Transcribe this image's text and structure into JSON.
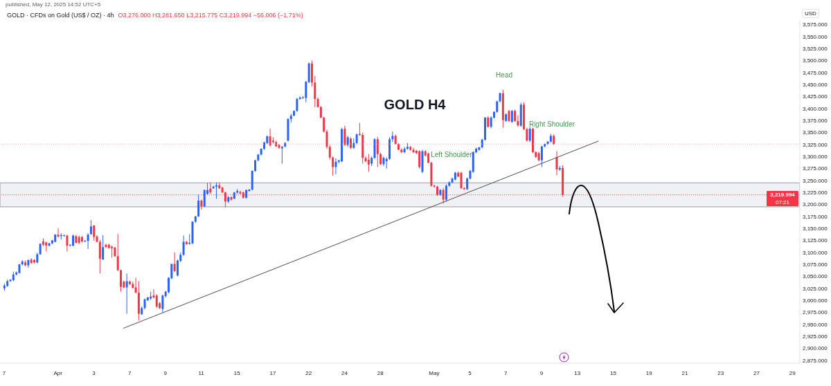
{
  "chart_data": {
    "type": "candlestick",
    "title": "GOLD H4",
    "subtitle": "GOLD · CFDs on Gold (US$ / OZ) · 4h",
    "ylabel": "USD",
    "annotations": [
      "published, May 12, 2025 14:52 UTC+5",
      "O3,276.000 H3,281.650 L3,215.775 C3,219.994 −56.006 (−1.71%)",
      "07:21",
      "Head",
      "Left Shoulder",
      "Right Shoulder"
    ],
    "categories": [
      "7",
      null,
      null,
      null,
      null,
      null,
      null,
      null,
      null,
      null,
      null,
      null,
      null,
      null,
      null,
      null,
      null,
      null,
      "Apr",
      null,
      null,
      null,
      null,
      null,
      null,
      null,
      null,
      null,
      null,
      null,
      "3",
      null,
      null,
      null,
      null,
      null,
      null,
      null,
      null,
      null,
      null,
      null,
      "7",
      null,
      null,
      null,
      null,
      null,
      null,
      null,
      null,
      null,
      null,
      null,
      "9",
      null,
      null,
      null,
      null,
      null,
      null,
      null,
      null,
      null,
      null,
      null,
      "11",
      null,
      null,
      null,
      null,
      null,
      null,
      null,
      null,
      null,
      null,
      null,
      "15",
      null,
      null,
      null,
      null,
      null,
      null,
      null,
      null,
      null,
      null,
      null,
      "17",
      null,
      null,
      null,
      null,
      null,
      null,
      null,
      null,
      null,
      null,
      null,
      "22",
      null,
      null,
      null,
      null,
      null,
      null,
      null,
      null,
      null,
      null,
      null,
      "24",
      null,
      null,
      null,
      null,
      null,
      null,
      null,
      null,
      null,
      null,
      null,
      "28",
      null,
      null,
      null,
      null,
      null,
      null,
      null,
      null,
      null,
      null,
      null,
      null,
      null,
      null,
      null,
      null,
      null,
      "May",
      null,
      null,
      null,
      null,
      null,
      null,
      null,
      null,
      null,
      null,
      null,
      "5",
      null,
      null,
      null,
      null,
      null,
      null,
      null,
      null,
      null,
      null,
      null,
      "7",
      null,
      null,
      null,
      null,
      null,
      null,
      null,
      null,
      null,
      null,
      null,
      "9",
      null,
      null,
      null,
      null,
      null,
      null,
      null,
      null,
      null,
      null,
      null,
      "13",
      null,
      null,
      null,
      null,
      null,
      null,
      null,
      null,
      null,
      null,
      null,
      "15",
      null,
      null,
      null,
      null,
      null,
      null,
      null,
      null,
      null,
      null,
      null,
      "19",
      null,
      null,
      null,
      null,
      null,
      null,
      null,
      null,
      null,
      null,
      null,
      "21",
      null,
      null,
      null,
      null,
      null,
      null,
      null,
      null,
      null,
      null,
      null,
      "23",
      null,
      null,
      null,
      null,
      null,
      null,
      null,
      null,
      null,
      null,
      null,
      "27",
      null,
      null,
      null,
      null,
      null,
      null,
      null,
      null,
      null,
      null,
      null,
      "29",
      null,
      null
    ],
    "ohlc": [
      [
        3025,
        3035,
        3020,
        3031
      ],
      [
        3030,
        3043,
        3028,
        3040
      ],
      [
        3040,
        3044,
        3039,
        3043
      ],
      [
        3042,
        3060,
        3040,
        3054
      ],
      [
        3054,
        3060,
        3052,
        3058
      ],
      [
        3057,
        3076,
        3056,
        3075
      ],
      [
        3075,
        3084,
        3073,
        3081
      ],
      [
        3079,
        3083,
        3071,
        3073
      ],
      [
        3073,
        3085,
        3068,
        3084
      ],
      [
        3085,
        3088,
        3076,
        3078
      ],
      [
        3084,
        3086,
        3077,
        3079
      ],
      [
        3079,
        3099,
        3077,
        3096
      ],
      [
        3096,
        3119,
        3095,
        3118
      ],
      [
        3123,
        3129,
        3113,
        3116
      ],
      [
        3121,
        3122,
        3102,
        3114
      ],
      [
        3114,
        3120,
        3112,
        3119
      ],
      [
        3119,
        3126,
        3117,
        3125
      ],
      [
        3122,
        3138,
        3121,
        3137
      ],
      [
        3137,
        3150,
        3131,
        3133
      ],
      [
        3134,
        3140,
        3127,
        3136
      ],
      [
        3135,
        3137,
        3133,
        3136
      ],
      [
        3135,
        3137,
        3102,
        3114
      ],
      [
        3115,
        3117,
        3112,
        3116
      ],
      [
        3114,
        3137,
        3113,
        3135
      ],
      [
        3134,
        3136,
        3119,
        3120
      ],
      [
        3132,
        3135,
        3117,
        3120
      ],
      [
        3132,
        3134,
        3121,
        3123
      ],
      [
        3123,
        3126,
        3121,
        3124
      ],
      [
        3124,
        3140,
        3107,
        3137
      ],
      [
        3138,
        3167,
        3137,
        3154
      ],
      [
        3156,
        3157,
        3124,
        3132
      ],
      [
        3133,
        3136,
        3121,
        3122
      ],
      [
        3122,
        3126,
        3056,
        3087
      ],
      [
        3085,
        3136,
        3085,
        3111
      ],
      [
        3116,
        3118,
        3110,
        3111
      ],
      [
        3116,
        3118,
        3108,
        3109
      ],
      [
        3112,
        3114,
        3089,
        3109
      ],
      [
        3110,
        3112,
        3091,
        3092
      ],
      [
        3092,
        3138,
        3061,
        3063
      ],
      [
        3063,
        3064,
        3018,
        3028
      ],
      [
        3039,
        3041,
        3025,
        3027
      ],
      [
        3027,
        3056,
        2972,
        3040
      ],
      [
        3039,
        3041,
        3032,
        3034
      ],
      [
        3034,
        3039,
        3025,
        3026
      ],
      [
        3027,
        3047,
        3015,
        3016
      ],
      [
        3016,
        3040,
        2958,
        2972
      ],
      [
        2971,
        2987,
        2970,
        2984
      ],
      [
        2984,
        3004,
        2981,
        3002
      ],
      [
        3000,
        3007,
        2999,
        3006
      ],
      [
        3004,
        3018,
        3001,
        3008
      ],
      [
        3010,
        3023,
        3004,
        3006
      ],
      [
        3010,
        3013,
        2984,
        2987
      ],
      [
        2994,
        2996,
        2982,
        2984
      ],
      [
        2982,
        3012,
        2975,
        3010
      ],
      [
        3009,
        3020,
        3006,
        3018
      ],
      [
        3017,
        3048,
        3015,
        3047
      ],
      [
        3046,
        3076,
        3044,
        3076
      ],
      [
        3076,
        3100,
        3059,
        3061
      ],
      [
        3052,
        3085,
        3050,
        3083
      ],
      [
        3082,
        3100,
        3080,
        3095
      ],
      [
        3095,
        3135,
        3093,
        3122
      ],
      [
        3122,
        3124,
        3116,
        3117
      ],
      [
        3118,
        3138,
        3116,
        3120
      ],
      [
        3119,
        3165,
        3117,
        3164
      ],
      [
        3164,
        3176,
        3162,
        3175
      ],
      [
        3175,
        3220,
        3174,
        3208
      ],
      [
        3208,
        3210,
        3189,
        3196
      ],
      [
        3196,
        3231,
        3194,
        3230
      ],
      [
        3222,
        3245,
        3221,
        3230
      ],
      [
        3233,
        3246,
        3222,
        3225
      ],
      [
        3234,
        3239,
        3232,
        3237
      ],
      [
        3237,
        3246,
        3212,
        3240
      ],
      [
        3240,
        3246,
        3232,
        3234
      ],
      [
        3235,
        3237,
        3224,
        3225
      ],
      [
        3225,
        3227,
        3194,
        3206
      ],
      [
        3206,
        3217,
        3203,
        3215
      ],
      [
        3215,
        3217,
        3208,
        3210
      ],
      [
        3212,
        3226,
        3211,
        3225
      ],
      [
        3225,
        3232,
        3222,
        3228
      ],
      [
        3226,
        3229,
        3221,
        3223
      ],
      [
        3225,
        3227,
        3212,
        3214
      ],
      [
        3214,
        3231,
        3212,
        3230
      ],
      [
        3228,
        3232,
        3227,
        3231
      ],
      [
        3231,
        3271,
        3229,
        3270
      ],
      [
        3270,
        3293,
        3268,
        3292
      ],
      [
        3292,
        3305,
        3290,
        3304
      ],
      [
        3304,
        3317,
        3302,
        3316
      ],
      [
        3316,
        3331,
        3314,
        3329
      ],
      [
        3328,
        3344,
        3326,
        3342
      ],
      [
        3342,
        3358,
        3321,
        3323
      ],
      [
        3333,
        3340,
        3327,
        3330
      ],
      [
        3330,
        3333,
        3320,
        3321
      ],
      [
        3324,
        3326,
        3316,
        3318
      ],
      [
        3317,
        3322,
        3285,
        3320
      ],
      [
        3321,
        3330,
        3319,
        3328
      ],
      [
        3333,
        3380,
        3331,
        3378
      ],
      [
        3378,
        3389,
        3371,
        3385
      ],
      [
        3385,
        3396,
        3384,
        3395
      ],
      [
        3395,
        3422,
        3393,
        3420
      ],
      [
        3420,
        3425,
        3418,
        3423
      ],
      [
        3423,
        3426,
        3420,
        3422
      ],
      [
        3422,
        3457,
        3413,
        3456
      ],
      [
        3455,
        3496,
        3453,
        3494
      ],
      [
        3494,
        3500,
        3446,
        3454
      ],
      [
        3454,
        3468,
        3403,
        3420
      ],
      [
        3420,
        3423,
        3402,
        3403
      ],
      [
        3403,
        3405,
        3380,
        3381
      ],
      [
        3381,
        3383,
        3350,
        3352
      ],
      [
        3352,
        3356,
        3316,
        3320
      ],
      [
        3320,
        3324,
        3294,
        3298
      ],
      [
        3298,
        3300,
        3260,
        3278
      ],
      [
        3278,
        3296,
        3263,
        3289
      ],
      [
        3289,
        3293,
        3285,
        3292
      ],
      [
        3290,
        3360,
        3288,
        3357
      ],
      [
        3358,
        3364,
        3322,
        3324
      ],
      [
        3324,
        3343,
        3320,
        3340
      ],
      [
        3337,
        3340,
        3316,
        3318
      ],
      [
        3318,
        3338,
        3316,
        3328
      ],
      [
        3328,
        3348,
        3325,
        3346
      ],
      [
        3347,
        3370,
        3343,
        3345
      ],
      [
        3345,
        3350,
        3285,
        3297
      ],
      [
        3297,
        3300,
        3288,
        3290
      ],
      [
        3293,
        3305,
        3268,
        3283
      ],
      [
        3285,
        3300,
        3280,
        3297
      ],
      [
        3297,
        3338,
        3295,
        3336
      ],
      [
        3336,
        3341,
        3278,
        3305
      ],
      [
        3305,
        3308,
        3282,
        3284
      ],
      [
        3284,
        3300,
        3280,
        3297
      ],
      [
        3290,
        3298,
        3275,
        3295
      ],
      [
        3295,
        3340,
        3293,
        3336
      ],
      [
        3336,
        3352,
        3330,
        3343
      ],
      [
        3343,
        3346,
        3325,
        3326
      ],
      [
        3326,
        3328,
        3313,
        3314
      ],
      [
        3314,
        3317,
        3307,
        3309
      ],
      [
        3309,
        3320,
        3307,
        3316
      ],
      [
        3316,
        3328,
        3314,
        3320
      ],
      [
        3320,
        3322,
        3312,
        3314
      ],
      [
        3314,
        3318,
        3307,
        3309
      ],
      [
        3312,
        3314,
        3305,
        3307
      ],
      [
        3311,
        3313,
        3275,
        3278
      ],
      [
        3268,
        3314,
        3265,
        3311
      ],
      [
        3311,
        3313,
        3300,
        3302
      ],
      [
        3306,
        3308,
        3286,
        3287
      ],
      [
        3287,
        3289,
        3237,
        3239
      ],
      [
        3239,
        3241,
        3235,
        3237
      ],
      [
        3237,
        3239,
        3218,
        3220
      ],
      [
        3220,
        3232,
        3218,
        3230
      ],
      [
        3230,
        3234,
        3202,
        3210
      ],
      [
        3210,
        3242,
        3206,
        3239
      ],
      [
        3239,
        3248,
        3237,
        3246
      ],
      [
        3246,
        3256,
        3244,
        3254
      ],
      [
        3252,
        3268,
        3250,
        3266
      ],
      [
        3266,
        3269,
        3257,
        3258
      ],
      [
        3266,
        3268,
        3232,
        3234
      ],
      [
        3234,
        3236,
        3230,
        3232
      ],
      [
        3232,
        3256,
        3230,
        3254
      ],
      [
        3254,
        3272,
        3252,
        3270
      ],
      [
        3268,
        3311,
        3266,
        3309
      ],
      [
        3309,
        3318,
        3307,
        3316
      ],
      [
        3314,
        3320,
        3312,
        3319
      ],
      [
        3319,
        3337,
        3317,
        3335
      ],
      [
        3335,
        3382,
        3333,
        3381
      ],
      [
        3381,
        3384,
        3360,
        3362
      ],
      [
        3362,
        3384,
        3359,
        3381
      ],
      [
        3381,
        3394,
        3379,
        3393
      ],
      [
        3393,
        3416,
        3391,
        3415
      ],
      [
        3415,
        3433,
        3413,
        3432
      ],
      [
        3432,
        3439,
        3360,
        3376
      ],
      [
        3374,
        3390,
        3372,
        3388
      ],
      [
        3395,
        3397,
        3372,
        3374
      ],
      [
        3372,
        3397,
        3370,
        3395
      ],
      [
        3395,
        3398,
        3372,
        3374
      ],
      [
        3374,
        3386,
        3362,
        3365
      ],
      [
        3364,
        3412,
        3362,
        3408
      ],
      [
        3408,
        3413,
        3355,
        3357
      ],
      [
        3357,
        3360,
        3331,
        3333
      ],
      [
        3333,
        3362,
        3330,
        3358
      ],
      [
        3358,
        3360,
        3307,
        3309
      ],
      [
        3309,
        3311,
        3297,
        3299
      ],
      [
        3307,
        3310,
        3290,
        3292
      ],
      [
        3292,
        3322,
        3278,
        3321
      ],
      [
        3321,
        3327,
        3319,
        3326
      ],
      [
        3326,
        3332,
        3324,
        3331
      ],
      [
        3331,
        3347,
        3329,
        3343
      ],
      [
        3343,
        3346,
        3324,
        3326
      ],
      [
        3299,
        3311,
        3261,
        3273
      ],
      [
        3273,
        3280,
        3270,
        3276
      ],
      [
        3276,
        3281.65,
        3215.775,
        3219.994
      ],
      null,
      null,
      null,
      null,
      null,
      null,
      null,
      null,
      null,
      null,
      null,
      null,
      null,
      null,
      null,
      null,
      null,
      null,
      null,
      null,
      null,
      null,
      null,
      null,
      null,
      null,
      null,
      null,
      null,
      null,
      null,
      null,
      null,
      null,
      null,
      null,
      null,
      null,
      null,
      null,
      null,
      null,
      null,
      null,
      null,
      null,
      null,
      null,
      null,
      null,
      null,
      null,
      null,
      null,
      null,
      null,
      null,
      null,
      null,
      null,
      null,
      null,
      null,
      null,
      null,
      null,
      null,
      null,
      null,
      null,
      null,
      null,
      null,
      null,
      null,
      null,
      null,
      null,
      null
    ],
    "colors": [
      "#2962ff",
      "#2962ff",
      "#2962ff",
      "#2962ff",
      "#2962ff",
      "#2962ff",
      "#2962ff",
      "#f23645",
      "#2962ff",
      "#f23645",
      "#f23645",
      "#2962ff",
      "#2962ff",
      "#f23645",
      "#f23645",
      "#2962ff",
      "#2962ff",
      "#2962ff",
      "#f23645",
      "#2962ff",
      "#2962ff",
      "#f23645",
      "#2962ff",
      "#2962ff",
      "#f23645",
      "#f23645",
      "#f23645",
      "#2962ff",
      "#2962ff",
      "#2962ff",
      "#f23645",
      "#f23645",
      "#f23645",
      "#2962ff",
      "#f23645",
      "#f23645",
      "#f23645",
      "#f23645",
      "#f23645",
      "#f23645",
      "#f23645",
      "#2962ff",
      "#f23645",
      "#f23645",
      "#f23645",
      "#f23645",
      "#2962ff",
      "#2962ff",
      "#2962ff",
      "#2962ff",
      "#f23645",
      "#f23645",
      "#f23645",
      "#2962ff",
      "#2962ff",
      "#2962ff",
      "#2962ff",
      "#f23645",
      "#2962ff",
      "#2962ff",
      "#2962ff",
      "#f23645",
      "#2962ff",
      "#2962ff",
      "#2962ff",
      "#2962ff",
      "#f23645",
      "#2962ff",
      "#2962ff",
      "#f23645",
      "#2962ff",
      "#2962ff",
      "#f23645",
      "#f23645",
      "#f23645",
      "#2962ff",
      "#f23645",
      "#2962ff",
      "#2962ff",
      "#f23645",
      "#f23645",
      "#2962ff",
      "#2962ff",
      "#2962ff",
      "#2962ff",
      "#2962ff",
      "#2962ff",
      "#2962ff",
      "#2962ff",
      "#f23645",
      "#f23645",
      "#f23645",
      "#f23645",
      "#2962ff",
      "#2962ff",
      "#2962ff",
      "#2962ff",
      "#2962ff",
      "#2962ff",
      "#2962ff",
      "#f23645",
      "#2962ff",
      "#2962ff",
      "#f23645",
      "#f23645",
      "#f23645",
      "#f23645",
      "#f23645",
      "#f23645",
      "#f23645",
      "#f23645",
      "#2962ff",
      "#2962ff",
      "#2962ff",
      "#f23645",
      "#2962ff",
      "#f23645",
      "#2962ff",
      "#2962ff",
      "#f23645",
      "#f23645",
      "#f23645",
      "#f23645",
      "#2962ff",
      "#2962ff",
      "#f23645",
      "#f23645",
      "#2962ff",
      "#2962ff",
      "#2962ff",
      "#2962ff",
      "#f23645",
      "#f23645",
      "#f23645",
      "#2962ff",
      "#2962ff",
      "#f23645",
      "#f23645",
      "#f23645",
      "#f23645",
      "#2962ff",
      "#f23645",
      "#f23645",
      "#f23645",
      "#f23645",
      "#f23645",
      "#2962ff",
      "#f23645",
      "#2962ff",
      "#2962ff",
      "#2962ff",
      "#2962ff",
      "#f23645",
      "#f23645",
      "#f23645",
      "#2962ff",
      "#2962ff",
      "#2962ff",
      "#2962ff",
      "#2962ff",
      "#2962ff",
      "#2962ff",
      "#f23645",
      "#2962ff",
      "#2962ff",
      "#2962ff",
      "#2962ff",
      "#f23645",
      "#2962ff",
      "#f23645",
      "#2962ff",
      "#f23645",
      "#f23645",
      "#2962ff",
      "#f23645",
      "#f23645",
      "#2962ff",
      "#f23645",
      "#f23645",
      "#f23645",
      "#2962ff",
      "#2962ff",
      "#2962ff",
      "#2962ff",
      "#f23645",
      "#f23645",
      "#2962ff",
      "#f23645",
      null,
      null,
      null,
      null,
      null,
      null,
      null,
      null,
      null,
      null,
      null,
      null,
      null,
      null,
      null,
      null,
      null,
      null,
      null,
      null,
      null,
      null,
      null,
      null,
      null,
      null,
      null,
      null,
      null,
      null,
      null,
      null,
      null,
      null,
      null,
      null,
      null,
      null,
      null,
      null,
      null,
      null,
      null,
      null,
      null,
      null,
      null,
      null,
      null,
      null,
      null,
      null,
      null,
      null,
      null,
      null,
      null,
      null,
      null,
      null,
      null,
      null,
      null,
      null,
      null,
      null,
      null,
      null,
      null,
      null,
      null,
      null,
      null,
      null,
      null,
      null,
      null,
      null,
      null
    ],
    "series": [
      {
        "type": "line",
        "color": "#4d4d4d",
        "values": [
          null,
          null,
          null,
          null,
          null,
          null,
          null,
          null,
          null,
          null,
          null,
          null,
          null,
          null,
          null,
          null,
          null,
          null,
          null,
          null,
          null,
          null,
          null,
          null,
          null,
          null,
          null,
          null,
          null,
          null,
          null,
          null,
          null,
          null,
          null,
          null,
          null,
          null,
          null,
          null,
          2942,
          null,
          null,
          null,
          null,
          null,
          null,
          null,
          null,
          null,
          null,
          null,
          null,
          null,
          null,
          null,
          null,
          null,
          null,
          null,
          null,
          null,
          null,
          null,
          null,
          null,
          null,
          null,
          null,
          null,
          null,
          null,
          null,
          null,
          null,
          null,
          null,
          null,
          null,
          null,
          null,
          null,
          null,
          null,
          null,
          null,
          null,
          null,
          null,
          null,
          null,
          null,
          null,
          null,
          null,
          null,
          null,
          null,
          null,
          null,
          null,
          null,
          null,
          null,
          null,
          null,
          null,
          null,
          null,
          null,
          null,
          null,
          null,
          null,
          null,
          null,
          null,
          null,
          null,
          null,
          null,
          null,
          null,
          null,
          null,
          null,
          null,
          null,
          null,
          null,
          null,
          null,
          null,
          null,
          null,
          null,
          null,
          null,
          null,
          null,
          null,
          null,
          null,
          null,
          null,
          null,
          null,
          null,
          null,
          null,
          null,
          null,
          null,
          null,
          null,
          null,
          null,
          null,
          null,
          null,
          null,
          null,
          null,
          null,
          null,
          null,
          null,
          null,
          null,
          null,
          null,
          null,
          null,
          null,
          null,
          null,
          null,
          null,
          null,
          null,
          null,
          null,
          null,
          null,
          null,
          null,
          null,
          null,
          null,
          null,
          null,
          null,
          null,
          null,
          null,
          null,
          null,
          null,
          null,
          3332,
          null,
          null,
          null,
          null,
          null,
          null,
          null,
          null,
          null,
          null,
          null,
          null,
          null,
          null,
          null,
          null,
          null,
          null,
          null,
          null,
          null,
          null,
          null,
          null,
          null,
          null,
          null,
          null,
          null,
          null,
          null,
          null,
          null,
          null,
          null,
          null,
          null,
          null,
          null,
          null,
          null,
          null,
          null,
          null,
          null,
          null,
          null,
          null,
          null,
          null,
          null,
          null,
          null,
          null,
          null,
          null,
          null,
          null,
          null,
          null,
          null,
          null,
          null,
          null,
          null,
          null,
          null
        ]
      }
    ],
    "ylim": [
      2869,
      3583
    ],
    "yticks": [
      {
        "value": 2875,
        "label": "2,875.000"
      },
      {
        "value": 2900,
        "label": "2,900.000"
      },
      {
        "value": 2925,
        "label": "2,925.000"
      },
      {
        "value": 2950,
        "label": "2,950.000"
      },
      {
        "value": 2975,
        "label": "2,975.000"
      },
      {
        "value": 3000,
        "label": "3,000.000"
      },
      {
        "value": 3025,
        "label": "3,025.000"
      },
      {
        "value": 3050,
        "label": "3,050.000"
      },
      {
        "value": 3075,
        "label": "3,075.000"
      },
      {
        "value": 3100,
        "label": "3,100.000"
      },
      {
        "value": 3125,
        "label": "3,125.000"
      },
      {
        "value": 3150,
        "label": "3,150.000"
      },
      {
        "value": 3175,
        "label": "3,175.000"
      },
      {
        "value": 3200,
        "label": "3,200.000"
      },
      {
        "value": 3225,
        "label": "3,225.000"
      },
      {
        "value": 3250,
        "label": "3,250.000"
      },
      {
        "value": 3275,
        "label": "3,275.000"
      },
      {
        "value": 3300,
        "label": "3,300.000"
      },
      {
        "value": 3325,
        "label": "3,325.000"
      },
      {
        "value": 3350,
        "label": "3,350.000"
      },
      {
        "value": 3375,
        "label": "3,375.000"
      },
      {
        "value": 3400,
        "label": "3,400.000"
      },
      {
        "value": 3425,
        "label": "3,425.000"
      },
      {
        "value": 3450,
        "label": "3,450.000"
      },
      {
        "value": 3475,
        "label": "3,475.000"
      },
      {
        "value": 3500,
        "label": "3,500.000"
      },
      {
        "value": 3525,
        "label": "3,525.000"
      },
      {
        "value": 3550,
        "label": "3,550.000"
      },
      {
        "value": 3575,
        "label": "3,575.000"
      }
    ],
    "bands": [
      {
        "axis": "y",
        "from": 3195,
        "to": 3245,
        "color": "#f0f1f5"
      }
    ],
    "ref_lines": [
      {
        "axis": "y",
        "value": 3326,
        "color": "#f4a7ae",
        "line_style": "dotted"
      },
      {
        "axis": "y",
        "value": 3219.994,
        "label": "3,219.994",
        "color": "#f23645",
        "line_style": "dotted"
      }
    ]
  }
}
